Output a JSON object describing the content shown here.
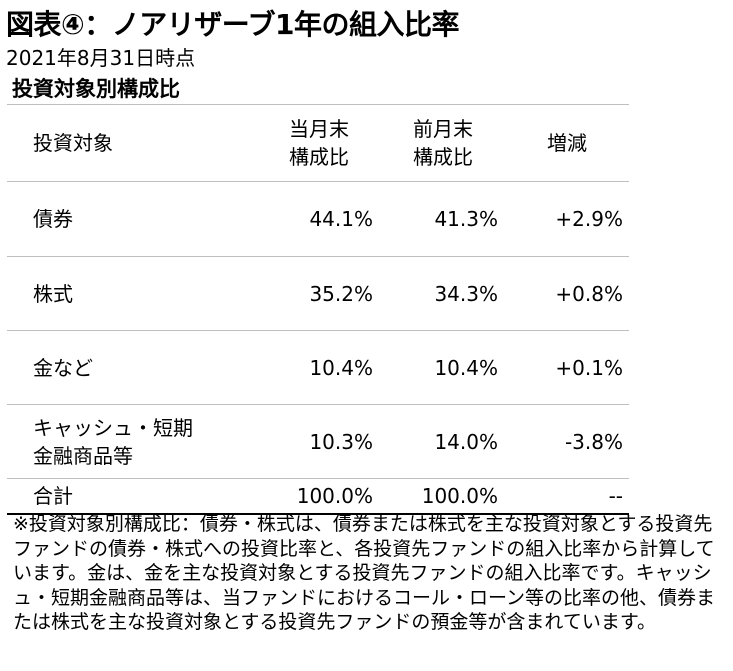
{
  "title": "図表④：ノアリザーブ1年の組入比率",
  "date": "2021年8月31日時点",
  "subtitle": "投資対象別構成比",
  "table": {
    "headers": {
      "category": "投資対象",
      "current_line1": "当月末",
      "current_line2": "構成比",
      "previous_line1": "前月末",
      "previous_line2": "構成比",
      "change": "増減"
    },
    "rows": [
      {
        "category": "債券",
        "current": "44.1%",
        "previous": "41.3%",
        "change": "+2.9%"
      },
      {
        "category": "株式",
        "current": "35.2%",
        "previous": "34.3%",
        "change": "+0.8%"
      },
      {
        "category": "金など",
        "current": "10.4%",
        "previous": "10.4%",
        "change": "+0.1%"
      },
      {
        "category_line1": "キャッシュ・短期",
        "category_line2": "金融商品等",
        "current": "10.3%",
        "previous": "14.0%",
        "change": "-3.8%"
      }
    ],
    "total": {
      "category": "合計",
      "current": "100.0%",
      "previous": "100.0%",
      "change": "--"
    }
  },
  "note": "※投資対象別構成比：債券・株式は、債券または株式を主な投資対象とする投資先ファンドの債券・株式への投資比率と、各投資先ファンドの組入比率から計算しています。金は、金を主な投資対象とする投資先ファンドの組入比率です。キャッシュ・短期金融商品等は、当ファンドにおけるコール・ローン等の比率の他、債券または株式を主な投資対象とする投資先ファンドの預金等が含まれています。"
}
